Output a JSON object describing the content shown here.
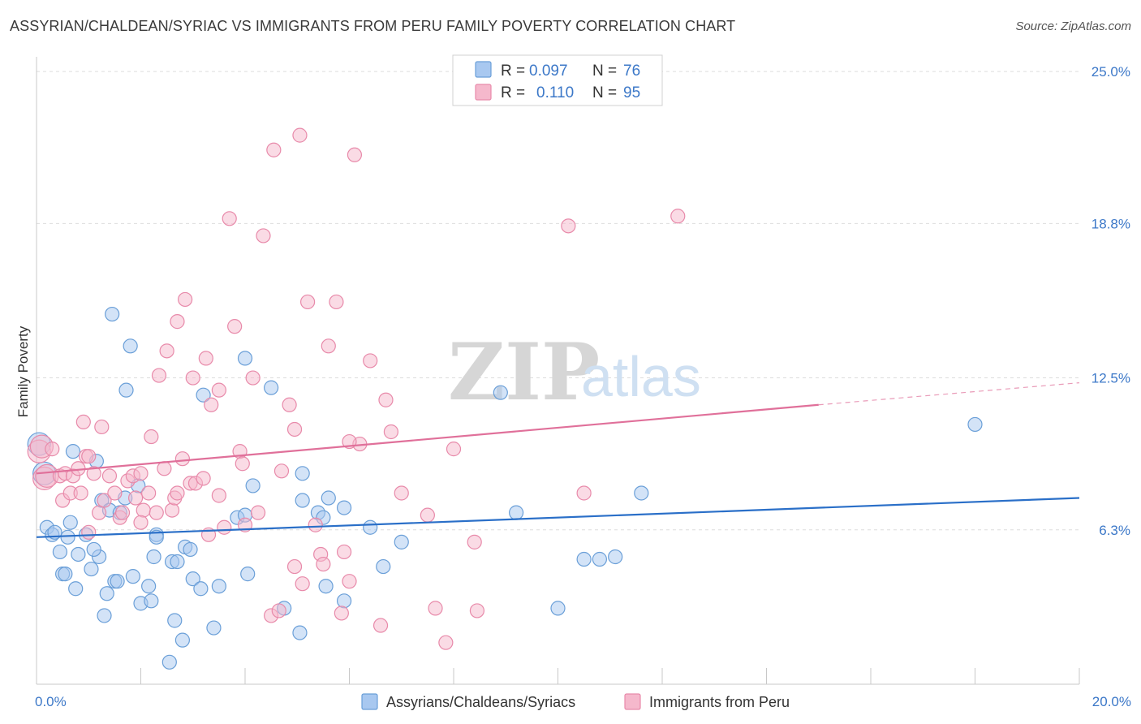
{
  "title": "ASSYRIAN/CHALDEAN/SYRIAC VS IMMIGRANTS FROM PERU FAMILY POVERTY CORRELATION CHART",
  "source": "Source: ZipAtlas.com",
  "watermark": {
    "zip": "ZIP",
    "atlas": "atlas"
  },
  "colors": {
    "blue_fill": "#a8c8f0",
    "blue_stroke": "#6a9fd8",
    "blue_line": "#2a6fc8",
    "pink_fill": "#f5b8cc",
    "pink_stroke": "#e88aaa",
    "pink_line": "#e0709a",
    "tick_text": "#3c78c8",
    "grid": "#dddddd"
  },
  "legend": {
    "rows": [
      {
        "r_label": "R =",
        "r_value": "0.097",
        "n_label": "N =",
        "n_value": "76"
      },
      {
        "r_label": "R =",
        "r_value": "0.110",
        "n_label": "N =",
        "n_value": "95"
      }
    ]
  },
  "bottom_legend": [
    "Assyrians/Chaldeans/Syriacs",
    "Immigrants from Peru"
  ],
  "chart_data": {
    "type": "scatter",
    "title": "ASSYRIAN/CHALDEAN/SYRIAC VS IMMIGRANTS FROM PERU FAMILY POVERTY CORRELATION CHART",
    "xlabel": "",
    "ylabel": "Family Poverty",
    "xlim": [
      0,
      20
    ],
    "ylim": [
      0,
      25.6
    ],
    "x_tick_labels": [
      {
        "value": 0,
        "label": "0.0%"
      },
      {
        "value": 20,
        "label": "20.0%"
      }
    ],
    "y_tick_labels": [
      {
        "value": 6.3,
        "label": "6.3%"
      },
      {
        "value": 12.5,
        "label": "12.5%"
      },
      {
        "value": 18.8,
        "label": "18.8%"
      },
      {
        "value": 25.0,
        "label": "25.0%"
      }
    ],
    "legend_position": "top-center",
    "series": [
      {
        "name": "Assyrians/Chaldeans/Syriacs",
        "color": "#a8c8f0",
        "trend": {
          "x": [
            0,
            20
          ],
          "y": [
            6.0,
            7.6
          ]
        },
        "points": [
          [
            0.05,
            9.8
          ],
          [
            0.15,
            8.6
          ],
          [
            0.2,
            6.4
          ],
          [
            0.3,
            6.1
          ],
          [
            0.35,
            6.2
          ],
          [
            0.45,
            5.4
          ],
          [
            0.5,
            4.5
          ],
          [
            0.55,
            4.5
          ],
          [
            0.65,
            6.6
          ],
          [
            0.7,
            9.5
          ],
          [
            0.75,
            3.9
          ],
          [
            0.8,
            5.3
          ],
          [
            0.95,
            6.1
          ],
          [
            1.05,
            4.7
          ],
          [
            1.15,
            9.1
          ],
          [
            1.2,
            5.2
          ],
          [
            1.25,
            7.5
          ],
          [
            1.3,
            2.8
          ],
          [
            1.35,
            3.7
          ],
          [
            1.4,
            7.1
          ],
          [
            1.45,
            15.1
          ],
          [
            1.5,
            4.2
          ],
          [
            1.55,
            4.2
          ],
          [
            1.6,
            7.0
          ],
          [
            1.7,
            7.6
          ],
          [
            1.72,
            12.0
          ],
          [
            1.8,
            13.8
          ],
          [
            1.85,
            4.4
          ],
          [
            1.95,
            8.1
          ],
          [
            2.0,
            3.3
          ],
          [
            2.15,
            4.0
          ],
          [
            2.2,
            3.4
          ],
          [
            2.25,
            5.2
          ],
          [
            2.3,
            6.1
          ],
          [
            2.55,
            0.9
          ],
          [
            2.6,
            5.0
          ],
          [
            2.65,
            2.6
          ],
          [
            2.7,
            5.0
          ],
          [
            2.8,
            1.8
          ],
          [
            2.85,
            5.6
          ],
          [
            2.95,
            5.5
          ],
          [
            3.0,
            4.3
          ],
          [
            3.15,
            3.9
          ],
          [
            3.2,
            11.8
          ],
          [
            3.4,
            2.3
          ],
          [
            3.5,
            4.0
          ],
          [
            3.85,
            6.8
          ],
          [
            4.0,
            6.9
          ],
          [
            4.0,
            13.3
          ],
          [
            4.05,
            4.5
          ],
          [
            4.15,
            8.1
          ],
          [
            4.5,
            12.1
          ],
          [
            4.75,
            3.1
          ],
          [
            5.05,
            2.1
          ],
          [
            5.1,
            8.6
          ],
          [
            5.1,
            7.5
          ],
          [
            5.4,
            7.0
          ],
          [
            5.5,
            6.8
          ],
          [
            5.55,
            4.0
          ],
          [
            5.6,
            7.6
          ],
          [
            5.9,
            3.4
          ],
          [
            5.9,
            7.2
          ],
          [
            6.4,
            6.4
          ],
          [
            6.65,
            4.8
          ],
          [
            7.0,
            5.8
          ],
          [
            8.9,
            11.9
          ],
          [
            9.2,
            7.0
          ],
          [
            10.0,
            3.1
          ],
          [
            10.5,
            5.1
          ],
          [
            10.8,
            5.1
          ],
          [
            11.1,
            5.2
          ],
          [
            11.6,
            7.8
          ],
          [
            18.0,
            10.6
          ],
          [
            2.3,
            6.0
          ],
          [
            0.6,
            6.0
          ],
          [
            1.1,
            5.5
          ]
        ]
      },
      {
        "name": "Immigrants from Peru",
        "color": "#f5b8cc",
        "trend": {
          "x": [
            0,
            15
          ],
          "y": [
            8.6,
            11.4
          ]
        },
        "trend_dashed": {
          "x": [
            15,
            20
          ],
          "y": [
            11.4,
            12.3
          ]
        },
        "points": [
          [
            0.05,
            9.5
          ],
          [
            0.1,
            9.7
          ],
          [
            0.15,
            8.4
          ],
          [
            0.2,
            8.5
          ],
          [
            0.3,
            9.6
          ],
          [
            0.45,
            8.5
          ],
          [
            0.5,
            7.5
          ],
          [
            0.55,
            8.6
          ],
          [
            0.65,
            7.8
          ],
          [
            0.7,
            8.5
          ],
          [
            0.8,
            8.8
          ],
          [
            0.85,
            7.8
          ],
          [
            0.9,
            10.7
          ],
          [
            0.95,
            9.3
          ],
          [
            1.0,
            6.2
          ],
          [
            1.1,
            8.6
          ],
          [
            1.2,
            7.0
          ],
          [
            1.25,
            10.5
          ],
          [
            1.3,
            7.5
          ],
          [
            1.4,
            8.5
          ],
          [
            1.5,
            7.8
          ],
          [
            1.6,
            6.8
          ],
          [
            1.65,
            7.0
          ],
          [
            1.75,
            8.3
          ],
          [
            1.85,
            8.5
          ],
          [
            1.9,
            7.6
          ],
          [
            2.0,
            8.6
          ],
          [
            2.05,
            7.1
          ],
          [
            2.15,
            7.8
          ],
          [
            2.2,
            10.1
          ],
          [
            2.3,
            7.0
          ],
          [
            2.35,
            12.6
          ],
          [
            2.45,
            8.8
          ],
          [
            2.5,
            13.6
          ],
          [
            2.6,
            7.1
          ],
          [
            2.65,
            7.6
          ],
          [
            2.7,
            7.8
          ],
          [
            2.7,
            14.8
          ],
          [
            2.8,
            9.2
          ],
          [
            2.85,
            15.7
          ],
          [
            2.95,
            8.2
          ],
          [
            3.0,
            12.5
          ],
          [
            3.05,
            8.2
          ],
          [
            3.2,
            8.4
          ],
          [
            3.25,
            13.3
          ],
          [
            3.3,
            6.1
          ],
          [
            3.35,
            11.4
          ],
          [
            3.5,
            12.0
          ],
          [
            3.5,
            7.7
          ],
          [
            3.6,
            6.4
          ],
          [
            3.7,
            19.0
          ],
          [
            3.8,
            14.6
          ],
          [
            3.9,
            9.5
          ],
          [
            3.95,
            9.0
          ],
          [
            4.0,
            6.5
          ],
          [
            4.15,
            12.5
          ],
          [
            4.25,
            7.0
          ],
          [
            4.35,
            18.3
          ],
          [
            4.5,
            2.8
          ],
          [
            4.55,
            21.8
          ],
          [
            4.65,
            3.0
          ],
          [
            4.7,
            8.7
          ],
          [
            4.85,
            11.4
          ],
          [
            4.95,
            10.4
          ],
          [
            5.05,
            22.4
          ],
          [
            5.2,
            15.6
          ],
          [
            5.35,
            6.5
          ],
          [
            5.45,
            5.3
          ],
          [
            5.5,
            4.9
          ],
          [
            5.6,
            13.8
          ],
          [
            5.75,
            15.6
          ],
          [
            5.85,
            2.9
          ],
          [
            5.9,
            5.4
          ],
          [
            6.0,
            4.2
          ],
          [
            6.1,
            21.6
          ],
          [
            6.2,
            9.8
          ],
          [
            6.4,
            13.2
          ],
          [
            6.6,
            2.4
          ],
          [
            6.7,
            11.6
          ],
          [
            6.8,
            10.3
          ],
          [
            7.0,
            7.8
          ],
          [
            7.5,
            6.9
          ],
          [
            7.65,
            3.1
          ],
          [
            7.85,
            1.7
          ],
          [
            8.0,
            9.6
          ],
          [
            8.4,
            5.8
          ],
          [
            8.45,
            3.0
          ],
          [
            10.2,
            18.7
          ],
          [
            10.5,
            7.8
          ],
          [
            12.3,
            19.1
          ],
          [
            5.1,
            4.1
          ],
          [
            4.95,
            4.8
          ],
          [
            6.0,
            9.9
          ],
          [
            2.0,
            6.6
          ],
          [
            1.0,
            9.3
          ]
        ]
      }
    ]
  }
}
